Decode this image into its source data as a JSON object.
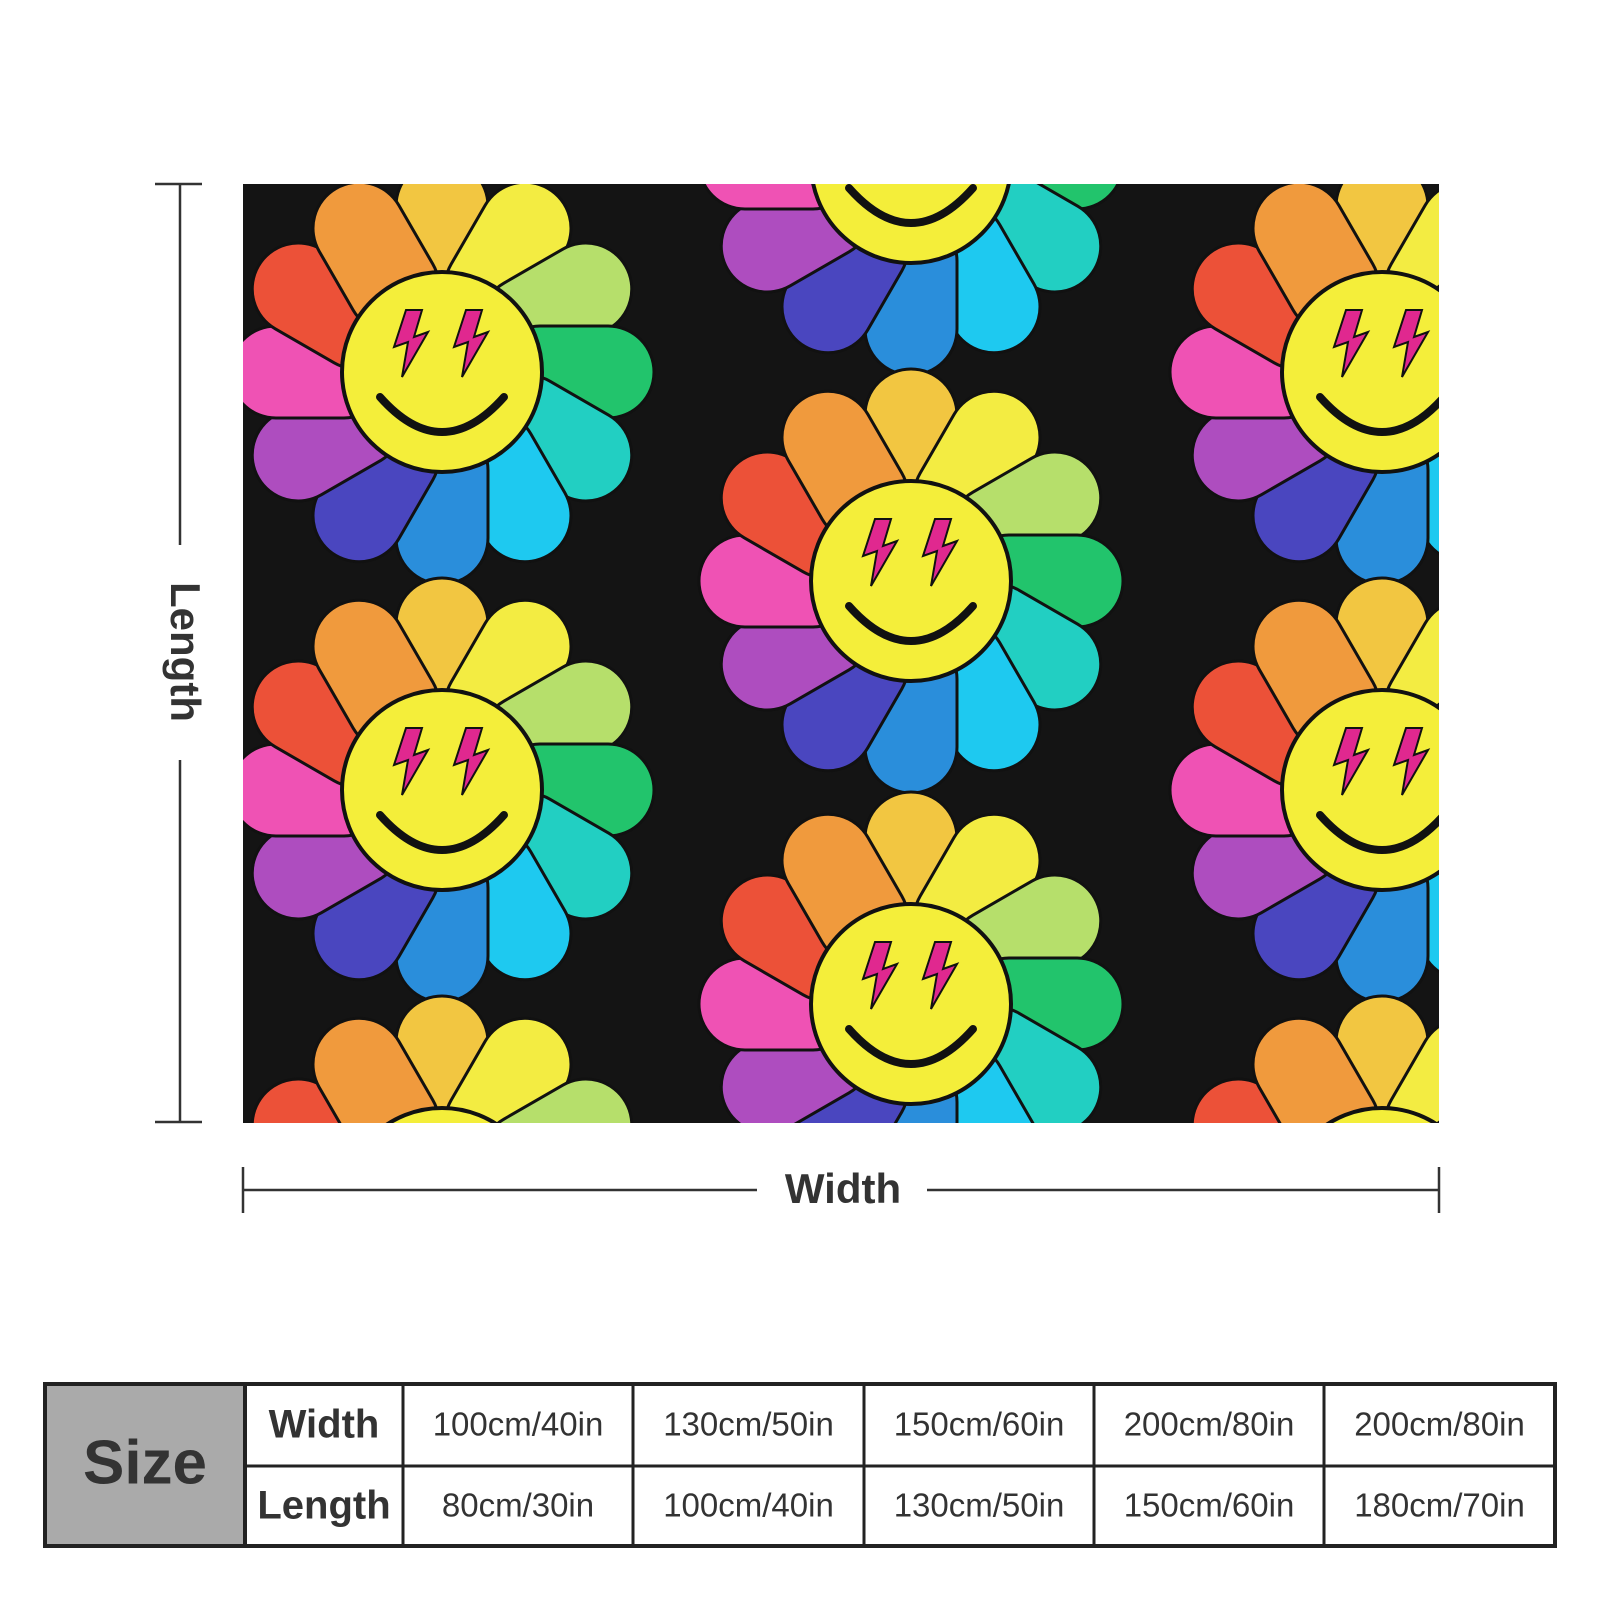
{
  "dimensions": {
    "length": "Length",
    "width": "Width"
  },
  "table": {
    "title": "Size",
    "rows": [
      [
        "Width",
        "100cm/40in",
        "130cm/50in",
        "150cm/60in",
        "200cm/80in",
        "200cm/80in"
      ],
      [
        "Length",
        "80cm/30in",
        "100cm/40in",
        "130cm/50in",
        "150cm/60in",
        "180cm/70in"
      ]
    ]
  }
}
